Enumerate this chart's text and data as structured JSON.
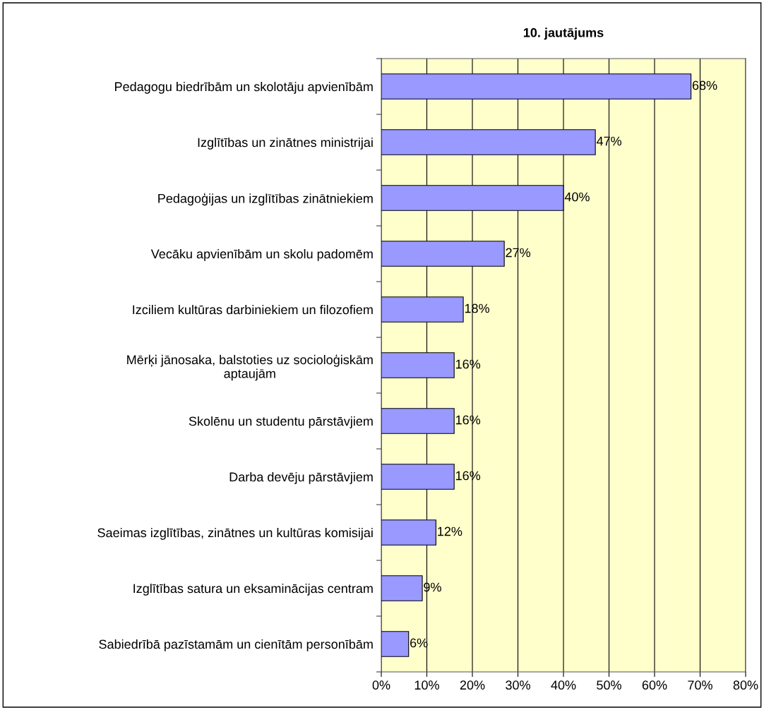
{
  "chart_data": {
    "type": "bar",
    "orientation": "horizontal",
    "title": "10. jautājums",
    "categories": [
      "Pedagogu biedrībām un skolotāju apvienībām",
      "Izglītības un zinātnes ministrijai",
      "Pedagoģijas un izglītības zinātniekiem",
      "Vecāku apvienībām un skolu padomēm",
      "Izciliem kultūras darbiniekiem un filozofiem",
      "Mērķi jānosaka, balstoties uz socioloģiskām\naptaujām",
      "Skolēnu un studentu pārstāvjiem",
      "Darba devēju pārstāvjiem",
      "Saeimas izglītības, zinātnes un kultūras komisijai",
      "Izglītības satura un eksaminācijas centram",
      "Sabiedrībā pazīstamām un cienītām personībām"
    ],
    "values": [
      68,
      47,
      40,
      27,
      18,
      16,
      16,
      16,
      12,
      9,
      6
    ],
    "value_labels": [
      "68%",
      "47%",
      "40%",
      "27%",
      "18%",
      "16%",
      "16%",
      "16%",
      "12%",
      "9%",
      "6%"
    ],
    "color": "#9999ff",
    "xlim": [
      0,
      80
    ],
    "xticks": [
      {
        "value": 0,
        "label": "0%"
      },
      {
        "value": 10,
        "label": "10%"
      },
      {
        "value": 20,
        "label": "20%"
      },
      {
        "value": 30,
        "label": "30%"
      },
      {
        "value": 40,
        "label": "40%"
      },
      {
        "value": 50,
        "label": "50%"
      },
      {
        "value": 60,
        "label": "60%"
      },
      {
        "value": 70,
        "label": "70%"
      },
      {
        "value": 80,
        "label": "80%"
      }
    ],
    "grid": "x",
    "legend": false
  }
}
